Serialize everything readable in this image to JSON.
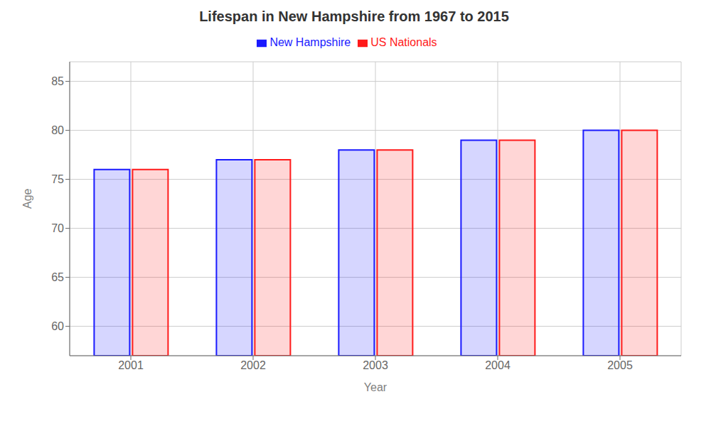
{
  "chart_data": {
    "type": "bar",
    "title": "Lifespan in New Hampshire from 1967 to 2015",
    "x_label": "Year",
    "y_label": "Age",
    "categories": [
      "2001",
      "2002",
      "2003",
      "2004",
      "2005"
    ],
    "series": [
      {
        "name": "New Hampshire",
        "color": "#1a1aff",
        "values": [
          76,
          77,
          78,
          79,
          80
        ]
      },
      {
        "name": "US Nationals",
        "color": "#ff1a1a",
        "values": [
          76,
          77,
          78,
          79,
          80
        ]
      }
    ],
    "ylim": [
      57,
      87
    ],
    "yticks": [
      60,
      65,
      70,
      75,
      80,
      85
    ],
    "grid": true,
    "legend": "top"
  }
}
